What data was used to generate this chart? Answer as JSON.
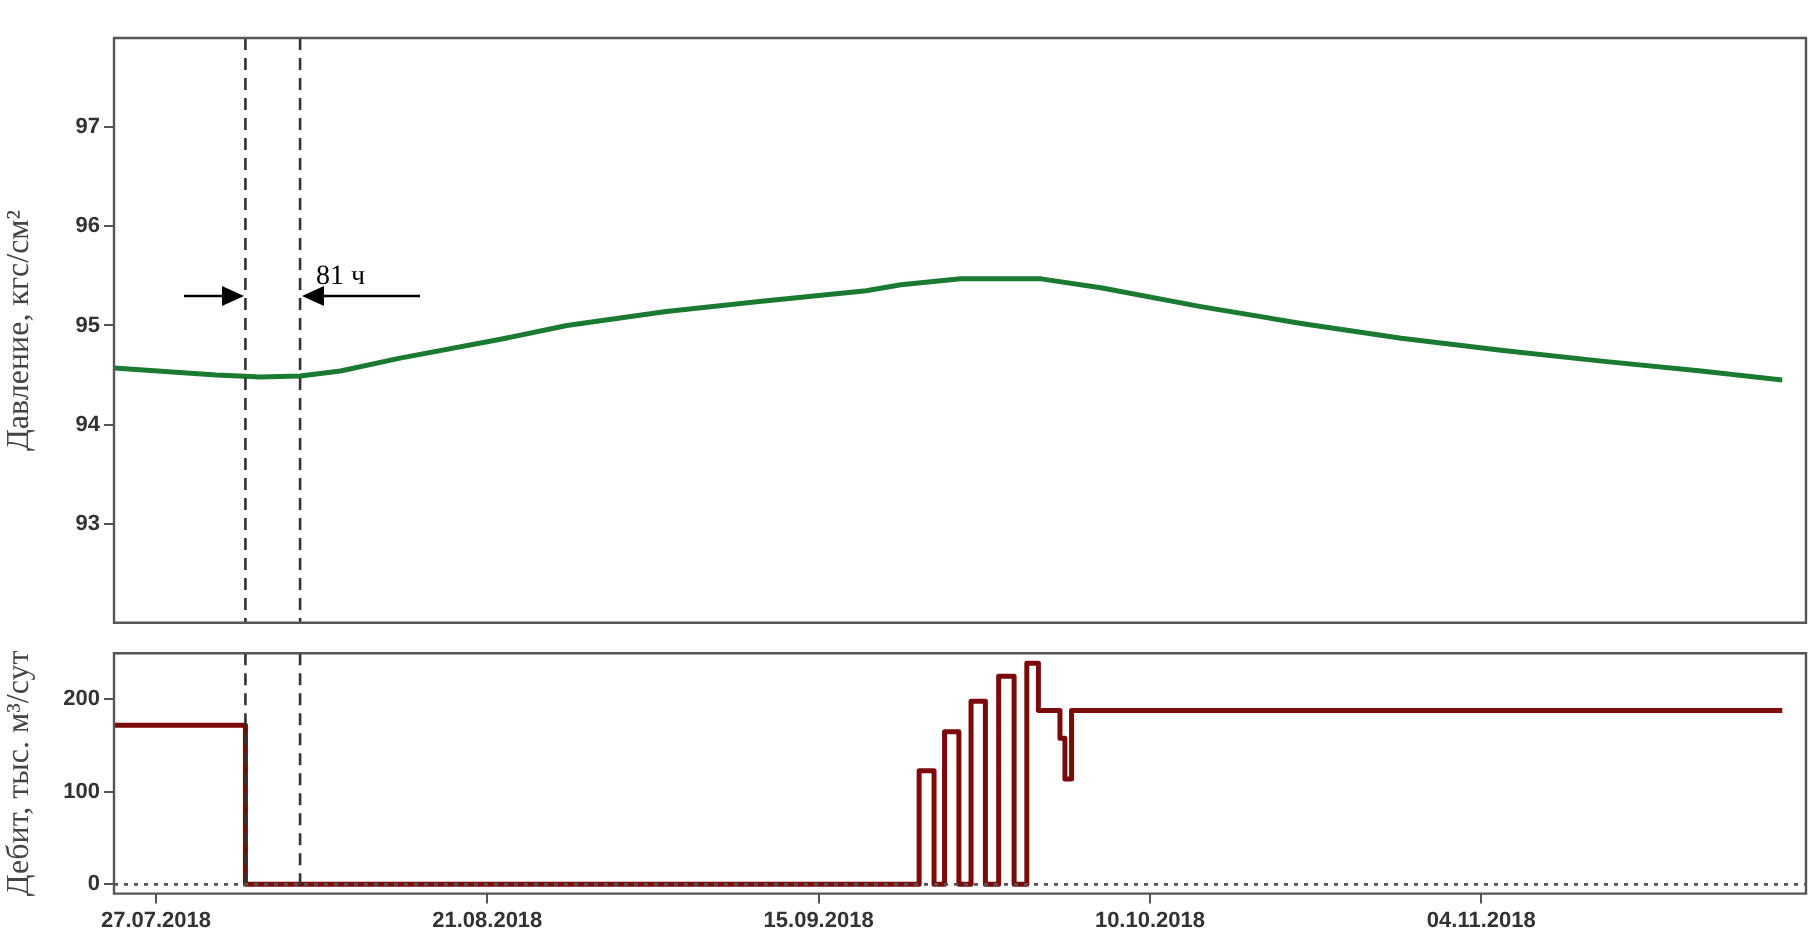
{
  "chart_data": [
    {
      "type": "line",
      "ylabel": "Давление, кгс/см²",
      "xlim": [
        "2018-07-23T20:00",
        "2018-11-28T12:00"
      ],
      "ylim": [
        92,
        97.9
      ],
      "yticks": [
        93,
        94,
        95,
        96,
        97
      ],
      "tick_labels": "y",
      "marker": "none",
      "line_style": "solid",
      "series": [
        {
          "color": "#1a7a32",
          "x": [
            "2018-07-23T20:00",
            "2018-07-31T13:00",
            "2018-08-03T20:00",
            "2018-08-06T21:00",
            "2018-08-09T22:00",
            "2018-08-14T10:00",
            "2018-08-22",
            "2018-08-27",
            "2018-09-03T12:00",
            "2018-09-11T02:00",
            "2018-09-18T14:00",
            "2018-09-21T05:00",
            "2018-09-25T17:00",
            "2018-10-01T19:00",
            "2018-10-06T07:00",
            "2018-10-13T20:00",
            "2018-10-21T10:00",
            "2018-10-28T23:00",
            "2018-11-05T12:00",
            "2018-11-13T02:00",
            "2018-11-20T14:00",
            "2018-11-26T17:00"
          ],
          "values": [
            94.57,
            94.5,
            94.48,
            94.49,
            94.54,
            94.67,
            94.86,
            95.0,
            95.14,
            95.25,
            95.35,
            95.41,
            95.47,
            95.47,
            95.38,
            95.19,
            95.02,
            94.87,
            94.75,
            94.64,
            94.54,
            94.45
          ]
        }
      ],
      "ref_lines": [
        {
          "axis": "x",
          "value": "2018-08-02T18:00",
          "color": "#333333",
          "line_style": "dashed"
        },
        {
          "axis": "x",
          "value": "2018-08-06T21:00",
          "color": "#333333",
          "line_style": "dashed"
        }
      ],
      "annotations": [
        {
          "text": "81 ч",
          "x": "2018-08-06T21:00",
          "y": 95.3
        }
      ]
    },
    {
      "type": "step",
      "ylabel": "Дебит, тыс. м³/сут",
      "xlim": [
        "2018-07-23T20:00",
        "2018-11-28T12:00"
      ],
      "ylim": [
        -10,
        250
      ],
      "yticks": [
        0,
        100,
        200
      ],
      "xticks": [
        {
          "value": "2018-07-27",
          "label": "27.07.2018"
        },
        {
          "value": "2018-08-21",
          "label": "21.08.2018"
        },
        {
          "value": "2018-09-15",
          "label": "15.09.2018"
        },
        {
          "value": "2018-10-10",
          "label": "10.10.2018"
        },
        {
          "value": "2018-11-04",
          "label": "04.11.2018"
        }
      ],
      "marker": "none",
      "line_style": "solid",
      "series": [
        {
          "color": "#7b0a0a",
          "x": [
            "2018-07-23T20:00",
            "2018-08-02T18:00",
            "2018-09-22T14:00",
            "2018-09-23T17:00",
            "2018-09-24T12:00",
            "2018-09-25T14:00",
            "2018-09-26T12:00",
            "2018-09-27T14:00",
            "2018-09-28T14:00",
            "2018-09-29T18:00",
            "2018-09-30T17:00",
            "2018-10-01T14:00",
            "2018-10-03T05:00",
            "2018-10-03T14:00",
            "2018-10-04T02:00",
            "2018-11-26T17:00"
          ],
          "values": [
            172,
            0,
            123,
            0,
            165,
            0,
            198,
            0,
            225,
            0,
            239,
            188,
            158,
            114,
            188,
            188
          ]
        }
      ],
      "ref_lines": [
        {
          "axis": "x",
          "value": "2018-08-02T18:00",
          "color": "#333333",
          "line_style": "dashed"
        },
        {
          "axis": "x",
          "value": "2018-08-06T21:00",
          "color": "#333333",
          "line_style": "dashed"
        },
        {
          "axis": "y",
          "value": 0,
          "color": "#555555",
          "line_style": "dotted"
        }
      ]
    }
  ]
}
